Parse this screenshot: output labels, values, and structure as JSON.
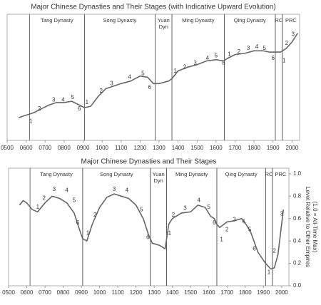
{
  "chart_data": [
    {
      "type": "line",
      "title": "Major Chinese Dynasties and Their Stages (with Indicative Upward Evolution)",
      "x": [
        560,
        600,
        640,
        680,
        720,
        760,
        800,
        840,
        880,
        907,
        940,
        980,
        1020,
        1060,
        1100,
        1150,
        1200,
        1240,
        1270,
        1300,
        1350,
        1368,
        1400,
        1450,
        1500,
        1550,
        1600,
        1640,
        1660,
        1700,
        1750,
        1800,
        1850,
        1880,
        1912,
        1940,
        1970,
        2000,
        2030
      ],
      "values": [
        0.18,
        0.2,
        0.22,
        0.25,
        0.28,
        0.3,
        0.3,
        0.31,
        0.28,
        0.26,
        0.27,
        0.35,
        0.41,
        0.43,
        0.45,
        0.47,
        0.51,
        0.5,
        0.45,
        0.45,
        0.47,
        0.49,
        0.55,
        0.58,
        0.6,
        0.63,
        0.64,
        0.63,
        0.65,
        0.68,
        0.69,
        0.71,
        0.71,
        0.7,
        0.7,
        0.7,
        0.73,
        0.78,
        0.85
      ],
      "color": "#666666",
      "xlim": [
        500,
        2040
      ],
      "ylim": [
        0,
        1
      ],
      "xticks": [
        {
          "value": 500,
          "label": "0500"
        },
        {
          "value": 600,
          "label": "0600"
        },
        {
          "value": 700,
          "label": "0700"
        },
        {
          "value": 800,
          "label": "0800"
        },
        {
          "value": 900,
          "label": "0900"
        },
        1000,
        1100,
        1200,
        1300,
        1400,
        1500,
        1600,
        1700,
        1800,
        1900,
        2000
      ],
      "periods": [
        {
          "name": [
            "Tang Dynasty"
          ],
          "start": 618,
          "end": 907
        },
        {
          "name": [
            "Song Dynasty"
          ],
          "start": 907,
          "end": 1279
        },
        {
          "name": [
            "Yuan",
            "Dyn"
          ],
          "start": 1279,
          "end": 1368
        },
        {
          "name": [
            "Ming Dynasty"
          ],
          "start": 1368,
          "end": 1644
        },
        {
          "name": [
            "Qing Dynasty"
          ],
          "start": 1644,
          "end": 1912
        },
        {
          "name": [
            "RC"
          ],
          "start": 1912,
          "end": 1949
        },
        {
          "name": [
            "PRC"
          ],
          "start": 1949
        }
      ],
      "annotations": [
        {
          "text": "1",
          "x": 625,
          "y": 0.15
        },
        {
          "text": "2",
          "x": 670,
          "y": 0.25
        },
        {
          "text": "3",
          "x": 745,
          "y": 0.32
        },
        {
          "text": "4",
          "x": 795,
          "y": 0.32
        },
        {
          "text": "5",
          "x": 845,
          "y": 0.34
        },
        {
          "text": "6",
          "x": 880,
          "y": 0.25
        },
        {
          "text": "1",
          "x": 920,
          "y": 0.3
        },
        {
          "text": "2",
          "x": 995,
          "y": 0.39
        },
        {
          "text": "3",
          "x": 1050,
          "y": 0.45
        },
        {
          "text": "4",
          "x": 1145,
          "y": 0.5
        },
        {
          "text": "5",
          "x": 1215,
          "y": 0.53
        },
        {
          "text": "6",
          "x": 1250,
          "y": 0.42
        },
        {
          "text": "1",
          "x": 1385,
          "y": 0.55
        },
        {
          "text": "2",
          "x": 1435,
          "y": 0.58
        },
        {
          "text": "3",
          "x": 1490,
          "y": 0.61
        },
        {
          "text": "4",
          "x": 1555,
          "y": 0.65
        },
        {
          "text": "5",
          "x": 1600,
          "y": 0.67
        },
        {
          "text": "6",
          "x": 1640,
          "y": 0.61
        },
        {
          "text": "1",
          "x": 1670,
          "y": 0.68
        },
        {
          "text": "2",
          "x": 1720,
          "y": 0.7
        },
        {
          "text": "3",
          "x": 1770,
          "y": 0.73
        },
        {
          "text": "4",
          "x": 1815,
          "y": 0.74
        },
        {
          "text": "5",
          "x": 1855,
          "y": 0.73
        },
        {
          "text": "6",
          "x": 1900,
          "y": 0.65
        },
        {
          "text": "1",
          "x": 1958,
          "y": 0.63
        },
        {
          "text": "2",
          "x": 1972,
          "y": 0.77
        },
        {
          "text": "3",
          "x": 2005,
          "y": 0.84
        }
      ]
    },
    {
      "type": "line",
      "title": "Major Chinese Dynasties and Their Stages",
      "x": [
        560,
        580,
        600,
        630,
        660,
        700,
        740,
        780,
        820,
        860,
        890,
        907,
        930,
        960,
        1000,
        1040,
        1080,
        1120,
        1160,
        1200,
        1240,
        1270,
        1290,
        1330,
        1360,
        1380,
        1400,
        1450,
        1500,
        1540,
        1580,
        1610,
        1630,
        1644,
        1660,
        1700,
        1740,
        1780,
        1800,
        1830,
        1870,
        1912,
        1940,
        1960,
        1980,
        2000,
        2010
      ],
      "values": [
        0.72,
        0.76,
        0.74,
        0.68,
        0.66,
        0.74,
        0.8,
        0.78,
        0.74,
        0.65,
        0.5,
        0.42,
        0.4,
        0.55,
        0.7,
        0.79,
        0.82,
        0.8,
        0.78,
        0.72,
        0.6,
        0.45,
        0.38,
        0.36,
        0.33,
        0.55,
        0.6,
        0.65,
        0.66,
        0.72,
        0.7,
        0.62,
        0.6,
        0.55,
        0.52,
        0.57,
        0.58,
        0.6,
        0.56,
        0.48,
        0.3,
        0.2,
        0.15,
        0.16,
        0.28,
        0.55,
        0.68
      ],
      "color": "#666666",
      "xlim": [
        500,
        2040
      ],
      "ylim": [
        0,
        1.05
      ],
      "xticks": [
        {
          "value": 500,
          "label": "0500"
        },
        {
          "value": 600,
          "label": "0600"
        },
        {
          "value": 700,
          "label": "0700"
        },
        {
          "value": 800,
          "label": "0800"
        },
        {
          "value": 900,
          "label": "0900"
        },
        1000,
        1100,
        1200,
        1300,
        1400,
        1500,
        1600,
        1700,
        1800,
        1900,
        2000
      ],
      "yticks": [
        {
          "value": 0,
          "label": "0.0"
        },
        0.2,
        0.4,
        0.6,
        0.8,
        {
          "value": 1,
          "label": "1.0"
        }
      ],
      "y_label": [
        "Level Relative to Other Empires",
        "(1.0 = All-Time Max)"
      ],
      "periods": [
        {
          "name": [
            "Tang Dynasty"
          ],
          "start": 618,
          "end": 907
        },
        {
          "name": [
            "Song Dynasty"
          ],
          "start": 907,
          "end": 1279
        },
        {
          "name": [
            "Yuan",
            "Dyn"
          ],
          "start": 1279,
          "end": 1368
        },
        {
          "name": [
            "Ming Dynasty"
          ],
          "start": 1368,
          "end": 1644
        },
        {
          "name": [
            "Qing Dynasty"
          ],
          "start": 1644,
          "end": 1912
        },
        {
          "name": [
            "RC"
          ],
          "start": 1912,
          "end": 1949
        },
        {
          "name": [
            "PRC"
          ],
          "start": 1949
        }
      ],
      "annotations": [
        {
          "text": "1",
          "x": 660,
          "y": 0.7
        },
        {
          "text": "2",
          "x": 695,
          "y": 0.78
        },
        {
          "text": "3",
          "x": 750,
          "y": 0.86
        },
        {
          "text": "4",
          "x": 820,
          "y": 0.85
        },
        {
          "text": "5",
          "x": 860,
          "y": 0.76
        },
        {
          "text": "6",
          "x": 880,
          "y": 0.56
        },
        {
          "text": "1",
          "x": 935,
          "y": 0.47
        },
        {
          "text": "2",
          "x": 975,
          "y": 0.63
        },
        {
          "text": "3",
          "x": 1080,
          "y": 0.86
        },
        {
          "text": "4",
          "x": 1150,
          "y": 0.85
        },
        {
          "text": "5",
          "x": 1230,
          "y": 0.68
        },
        {
          "text": "6",
          "x": 1265,
          "y": 0.43
        },
        {
          "text": "1",
          "x": 1385,
          "y": 0.47
        },
        {
          "text": "2",
          "x": 1405,
          "y": 0.63
        },
        {
          "text": "3",
          "x": 1470,
          "y": 0.69
        },
        {
          "text": "4",
          "x": 1545,
          "y": 0.76
        },
        {
          "text": "5",
          "x": 1600,
          "y": 0.7
        },
        {
          "text": "6",
          "x": 1630,
          "y": 0.56
        },
        {
          "text": "1",
          "x": 1670,
          "y": 0.41
        },
        {
          "text": "2",
          "x": 1700,
          "y": 0.5
        },
        {
          "text": "3",
          "x": 1740,
          "y": 0.59
        },
        {
          "text": "4",
          "x": 1790,
          "y": 0.57
        },
        {
          "text": "5",
          "x": 1825,
          "y": 0.5
        },
        {
          "text": "6",
          "x": 1850,
          "y": 0.33
        },
        {
          "text": "1",
          "x": 1930,
          "y": 0.12
        },
        {
          "text": "2",
          "x": 1960,
          "y": 0.31
        },
        {
          "text": "3",
          "x": 2000,
          "y": 0.64
        }
      ]
    }
  ]
}
